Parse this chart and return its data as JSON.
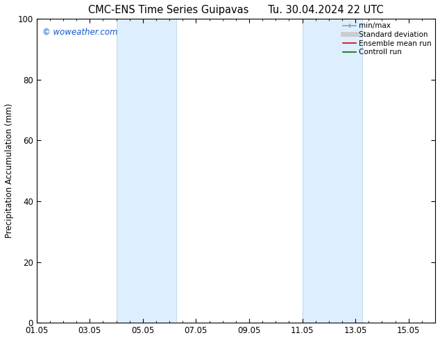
{
  "title": "CMC-ENS Time Series Guipavas      Tu. 30.04.2024 22 UTC",
  "ylabel": "Precipitation Accumulation (mm)",
  "ylim": [
    0,
    100
  ],
  "yticks": [
    0,
    20,
    40,
    60,
    80,
    100
  ],
  "xlim": [
    0,
    15
  ],
  "xtick_labels": [
    "01.05",
    "03.05",
    "05.05",
    "07.05",
    "09.05",
    "11.05",
    "13.05",
    "15.05"
  ],
  "xtick_positions_days": [
    0,
    2,
    4,
    6,
    8,
    10,
    12,
    14
  ],
  "shaded_bands": [
    {
      "x_start_day": 3.0,
      "x_end_day": 5.25
    },
    {
      "x_start_day": 10.0,
      "x_end_day": 12.25
    }
  ],
  "band_color": "#ddeeff",
  "band_edge_color": "#b8d4e8",
  "watermark_text": "© woweather.com",
  "watermark_color": "#1155cc",
  "legend_entries": [
    {
      "label": "min/max",
      "color": "#999999",
      "lw": 1.2,
      "style": "solid",
      "type": "line_capped"
    },
    {
      "label": "Standard deviation",
      "color": "#cccccc",
      "lw": 5,
      "style": "solid",
      "type": "line"
    },
    {
      "label": "Ensemble mean run",
      "color": "#cc0000",
      "lw": 1.2,
      "style": "solid",
      "type": "line"
    },
    {
      "label": "Controll run",
      "color": "#006600",
      "lw": 1.2,
      "style": "solid",
      "type": "line"
    }
  ],
  "bg_color": "#ffffff",
  "axes_bg_color": "#ffffff",
  "title_fontsize": 10.5,
  "label_fontsize": 8.5,
  "tick_fontsize": 8.5,
  "legend_fontsize": 7.5
}
